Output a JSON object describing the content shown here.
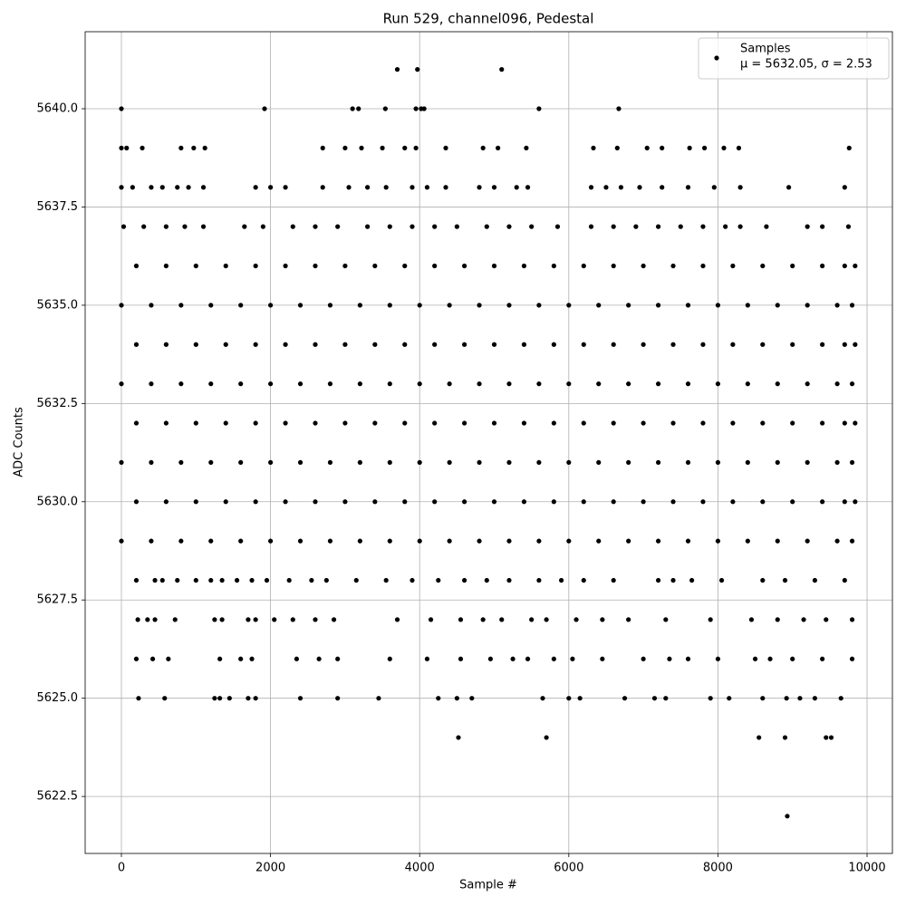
{
  "chart_data": {
    "type": "scatter",
    "title": "Run 529, channel096, Pedestal",
    "xlabel": "Sample #",
    "ylabel": "ADC Counts",
    "xlim": [
      -486,
      10340
    ],
    "ylim": [
      5621.05,
      5641.96
    ],
    "xticks": [
      0,
      2000,
      4000,
      6000,
      8000,
      10000
    ],
    "yticks": [
      5622.5,
      {
        "value": 5625,
        "label": "5625.0"
      },
      5627.5,
      {
        "value": 5630,
        "label": "5630.0"
      },
      5632.5,
      {
        "value": 5635,
        "label": "5635.0"
      },
      5637.5,
      {
        "value": 5640,
        "label": "5640.0"
      }
    ],
    "grid": true,
    "legend": "upper right",
    "legend_note": "μ = 5632.05, σ = 2.53",
    "series": [
      {
        "name": "Samples",
        "color": "#000000",
        "x": [
          3700,
          3970,
          5100,
          0,
          1920,
          3100,
          3180,
          3540,
          3950,
          4020,
          4060,
          5600,
          6670,
          0,
          70,
          280,
          800,
          970,
          1120,
          2700,
          3000,
          3220,
          3500,
          3800,
          3950,
          4350,
          4850,
          5050,
          5430,
          6330,
          6650,
          7050,
          7250,
          7620,
          7820,
          8080,
          8280,
          9760,
          0,
          150,
          400,
          550,
          750,
          900,
          1100,
          1800,
          2000,
          2200,
          2700,
          3050,
          3300,
          3550,
          3900,
          4100,
          4350,
          4800,
          5000,
          5300,
          5450,
          6300,
          6500,
          6700,
          6950,
          7250,
          7600,
          7950,
          8300,
          8950,
          9700,
          30,
          300,
          600,
          850,
          1100,
          1650,
          1900,
          2300,
          2600,
          2900,
          3300,
          3600,
          3900,
          4200,
          4500,
          4900,
          5200,
          5500,
          5850,
          6300,
          6600,
          6900,
          7200,
          7500,
          7800,
          8100,
          8300,
          8650,
          9200,
          9400,
          9750,
          200,
          600,
          1000,
          1400,
          1800,
          2200,
          2600,
          3000,
          3400,
          3800,
          4200,
          4600,
          5000,
          5400,
          5800,
          6200,
          6600,
          7000,
          7400,
          7800,
          8200,
          8600,
          9000,
          9400,
          9700,
          9840,
          0,
          400,
          800,
          1200,
          1600,
          2000,
          2400,
          2800,
          3200,
          3600,
          4000,
          4400,
          4800,
          5200,
          5600,
          6000,
          6400,
          6800,
          7200,
          7600,
          8000,
          8400,
          8800,
          9200,
          9600,
          9800,
          200,
          600,
          1000,
          1400,
          1800,
          2200,
          2600,
          3000,
          3400,
          3800,
          4200,
          4600,
          5000,
          5400,
          5800,
          6200,
          6600,
          7000,
          7400,
          7800,
          8200,
          8600,
          9000,
          9400,
          9700,
          9840,
          0,
          400,
          800,
          1200,
          1600,
          2000,
          2400,
          2800,
          3200,
          3600,
          4000,
          4400,
          4800,
          5200,
          5600,
          6000,
          6400,
          6800,
          7200,
          7600,
          8000,
          8400,
          8800,
          9200,
          9600,
          9800,
          200,
          600,
          1000,
          1400,
          1800,
          2200,
          2600,
          3000,
          3400,
          3800,
          4200,
          4600,
          5000,
          5400,
          5800,
          6200,
          6600,
          7000,
          7400,
          7800,
          8200,
          8600,
          9000,
          9400,
          9700,
          9840,
          0,
          400,
          800,
          1200,
          1600,
          2000,
          2400,
          2800,
          3200,
          3600,
          4000,
          4400,
          4800,
          5200,
          5600,
          6000,
          6400,
          6800,
          7200,
          7600,
          8000,
          8400,
          8800,
          9200,
          9600,
          9800,
          200,
          600,
          1000,
          1400,
          1800,
          2200,
          2600,
          3000,
          3400,
          3800,
          4200,
          4600,
          5000,
          5400,
          5800,
          6200,
          6600,
          7000,
          7400,
          7800,
          8200,
          8600,
          9000,
          9400,
          9700,
          9840,
          0,
          400,
          800,
          1200,
          1600,
          2000,
          2400,
          2800,
          3200,
          3600,
          4000,
          4400,
          4800,
          5200,
          5600,
          6000,
          6400,
          6800,
          7200,
          7600,
          8000,
          8400,
          8800,
          9200,
          9600,
          9800,
          200,
          450,
          550,
          750,
          1000,
          1200,
          1350,
          1550,
          1750,
          1950,
          2250,
          2550,
          2750,
          3150,
          3550,
          3900,
          4250,
          4600,
          4900,
          5200,
          5600,
          5900,
          6200,
          6600,
          7200,
          7400,
          7650,
          8050,
          8600,
          8900,
          9300,
          9700,
          220,
          350,
          450,
          720,
          1250,
          1350,
          1700,
          1800,
          2050,
          2300,
          2600,
          2850,
          3700,
          4150,
          4550,
          4850,
          5100,
          5500,
          5700,
          6100,
          6450,
          6800,
          7300,
          7900,
          8450,
          8800,
          9150,
          9450,
          9800,
          200,
          420,
          630,
          1320,
          1600,
          1750,
          2350,
          2650,
          2900,
          3600,
          4100,
          4550,
          4950,
          5250,
          5450,
          5800,
          6050,
          6450,
          7000,
          7350,
          7600,
          8000,
          8500,
          8700,
          9000,
          9400,
          9800,
          230,
          580,
          1250,
          1320,
          1450,
          1700,
          1800,
          2400,
          2900,
          3450,
          4250,
          4500,
          4700,
          5650,
          6000,
          6150,
          6750,
          7150,
          7300,
          7900,
          8150,
          8600,
          8920,
          9100,
          9300,
          9650,
          4520,
          5700,
          8550,
          8900,
          9450,
          9520,
          8930
        ],
        "values": [
          5641,
          5641,
          5641,
          5640,
          5640,
          5640,
          5640,
          5640,
          5640,
          5640,
          5640,
          5640,
          5640,
          5639,
          5639,
          5639,
          5639,
          5639,
          5639,
          5639,
          5639,
          5639,
          5639,
          5639,
          5639,
          5639,
          5639,
          5639,
          5639,
          5639,
          5639,
          5639,
          5639,
          5639,
          5639,
          5639,
          5639,
          5639,
          5638,
          5638,
          5638,
          5638,
          5638,
          5638,
          5638,
          5638,
          5638,
          5638,
          5638,
          5638,
          5638,
          5638,
          5638,
          5638,
          5638,
          5638,
          5638,
          5638,
          5638,
          5638,
          5638,
          5638,
          5638,
          5638,
          5638,
          5638,
          5638,
          5638,
          5638,
          5637,
          5637,
          5637,
          5637,
          5637,
          5637,
          5637,
          5637,
          5637,
          5637,
          5637,
          5637,
          5637,
          5637,
          5637,
          5637,
          5637,
          5637,
          5637,
          5637,
          5637,
          5637,
          5637,
          5637,
          5637,
          5637,
          5637,
          5637,
          5637,
          5637,
          5637,
          5636,
          5636,
          5636,
          5636,
          5636,
          5636,
          5636,
          5636,
          5636,
          5636,
          5636,
          5636,
          5636,
          5636,
          5636,
          5636,
          5636,
          5636,
          5636,
          5636,
          5636,
          5636,
          5636,
          5636,
          5636,
          5636,
          5635,
          5635,
          5635,
          5635,
          5635,
          5635,
          5635,
          5635,
          5635,
          5635,
          5635,
          5635,
          5635,
          5635,
          5635,
          5635,
          5635,
          5635,
          5635,
          5635,
          5635,
          5635,
          5635,
          5635,
          5635,
          5635,
          5634,
          5634,
          5634,
          5634,
          5634,
          5634,
          5634,
          5634,
          5634,
          5634,
          5634,
          5634,
          5634,
          5634,
          5634,
          5634,
          5634,
          5634,
          5634,
          5634,
          5634,
          5634,
          5634,
          5634,
          5634,
          5634,
          5633,
          5633,
          5633,
          5633,
          5633,
          5633,
          5633,
          5633,
          5633,
          5633,
          5633,
          5633,
          5633,
          5633,
          5633,
          5633,
          5633,
          5633,
          5633,
          5633,
          5633,
          5633,
          5633,
          5633,
          5633,
          5633,
          5632,
          5632,
          5632,
          5632,
          5632,
          5632,
          5632,
          5632,
          5632,
          5632,
          5632,
          5632,
          5632,
          5632,
          5632,
          5632,
          5632,
          5632,
          5632,
          5632,
          5632,
          5632,
          5632,
          5632,
          5632,
          5632,
          5631,
          5631,
          5631,
          5631,
          5631,
          5631,
          5631,
          5631,
          5631,
          5631,
          5631,
          5631,
          5631,
          5631,
          5631,
          5631,
          5631,
          5631,
          5631,
          5631,
          5631,
          5631,
          5631,
          5631,
          5631,
          5631,
          5630,
          5630,
          5630,
          5630,
          5630,
          5630,
          5630,
          5630,
          5630,
          5630,
          5630,
          5630,
          5630,
          5630,
          5630,
          5630,
          5630,
          5630,
          5630,
          5630,
          5630,
          5630,
          5630,
          5630,
          5630,
          5630,
          5629,
          5629,
          5629,
          5629,
          5629,
          5629,
          5629,
          5629,
          5629,
          5629,
          5629,
          5629,
          5629,
          5629,
          5629,
          5629,
          5629,
          5629,
          5629,
          5629,
          5629,
          5629,
          5629,
          5629,
          5629,
          5629,
          5628,
          5628,
          5628,
          5628,
          5628,
          5628,
          5628,
          5628,
          5628,
          5628,
          5628,
          5628,
          5628,
          5628,
          5628,
          5628,
          5628,
          5628,
          5628,
          5628,
          5628,
          5628,
          5628,
          5628,
          5628,
          5628,
          5628,
          5628,
          5628,
          5628,
          5628,
          5628,
          5627,
          5627,
          5627,
          5627,
          5627,
          5627,
          5627,
          5627,
          5627,
          5627,
          5627,
          5627,
          5627,
          5627,
          5627,
          5627,
          5627,
          5627,
          5627,
          5627,
          5627,
          5627,
          5627,
          5627,
          5627,
          5627,
          5627,
          5627,
          5627,
          5626,
          5626,
          5626,
          5626,
          5626,
          5626,
          5626,
          5626,
          5626,
          5626,
          5626,
          5626,
          5626,
          5626,
          5626,
          5626,
          5626,
          5626,
          5626,
          5626,
          5626,
          5626,
          5626,
          5626,
          5626,
          5626,
          5626,
          5625,
          5625,
          5625,
          5625,
          5625,
          5625,
          5625,
          5625,
          5625,
          5625,
          5625,
          5625,
          5625,
          5625,
          5625,
          5625,
          5625,
          5625,
          5625,
          5625,
          5625,
          5625,
          5625,
          5625,
          5625,
          5625,
          5624,
          5624,
          5624,
          5624,
          5624,
          5624,
          5622
        ]
      }
    ]
  }
}
